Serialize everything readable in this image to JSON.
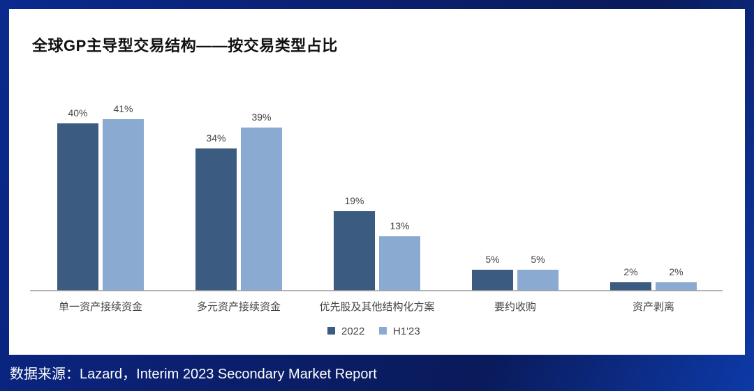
{
  "page": {
    "title": "全球GP主导型交易结构——按交易类型占比",
    "source": "数据来源：Lazard，Interim 2023 Secondary Market Report"
  },
  "chart_data": {
    "type": "bar",
    "title": "全球GP主导型交易结构——按交易类型占比",
    "categories": [
      "单一资产接续资金",
      "多元资产接续资金",
      "优先股及其他结构化方案",
      "要约收购",
      "资产剥离"
    ],
    "series": [
      {
        "name": "2022",
        "values": [
          40,
          34,
          19,
          5,
          2
        ],
        "labels": [
          "40%",
          "34%",
          "19%",
          "5%",
          "2%"
        ],
        "color": "#3b5b80"
      },
      {
        "name": "H1'23",
        "values": [
          41,
          39,
          13,
          5,
          2
        ],
        "labels": [
          "41%",
          "39%",
          "13%",
          "5%",
          "2%"
        ],
        "color": "#8aaad1"
      }
    ],
    "xlabel": "",
    "ylabel": "",
    "ylim": [
      0,
      45
    ],
    "grid": false,
    "legend": "bottom-center"
  },
  "colors": {
    "axis": "#9a9a9a",
    "label_text": "#444444",
    "background_accent": "#0b1f6e"
  }
}
